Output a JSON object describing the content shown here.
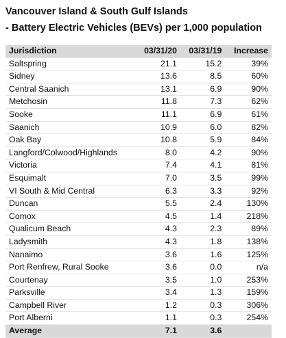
{
  "header": {
    "title_line1": "Vancouver Island & South Gulf Islands",
    "title_line2": "- Battery Electric Vehicles (BEVs) per 1,000 population"
  },
  "table": {
    "columns": [
      "Jurisdiction",
      "03/31/20",
      "03/31/19",
      "Increase"
    ],
    "rows": [
      [
        "Saltspring",
        "21.1",
        "15.2",
        "39%"
      ],
      [
        "Sidney",
        "13.6",
        "8.5",
        "60%"
      ],
      [
        "Central Saanich",
        "13.1",
        "6.9",
        "90%"
      ],
      [
        "Metchosin",
        "11.8",
        "7.3",
        "62%"
      ],
      [
        "Sooke",
        "11.1",
        "6.9",
        "61%"
      ],
      [
        "Saanich",
        "10.9",
        "6.0",
        "82%"
      ],
      [
        "Oak Bay",
        "10.8",
        "5.9",
        "84%"
      ],
      [
        "Langford/Colwood/Highlands",
        "8.0",
        "4.2",
        "90%"
      ],
      [
        "Victoria",
        "7.4",
        "4.1",
        "81%"
      ],
      [
        "Esquimalt",
        "7.0",
        "3.5",
        "99%"
      ],
      [
        "VI South & Mid Central",
        "6.3",
        "3.3",
        "92%"
      ],
      [
        "Duncan",
        "5.5",
        "2.4",
        "130%"
      ],
      [
        "Comox",
        "4.5",
        "1.4",
        "218%"
      ],
      [
        "Qualicum Beach",
        "4.3",
        "2.3",
        "89%"
      ],
      [
        "Ladysmith",
        "4.3",
        "1.8",
        "138%"
      ],
      [
        "Nanaimo",
        "3.6",
        "1.6",
        "125%"
      ],
      [
        "Port Renfrew, Rural Sooke",
        "3.6",
        "0.0",
        "n/a"
      ],
      [
        "Courtenay",
        "3.5",
        "1.0",
        "253%"
      ],
      [
        "Parksville",
        "3.4",
        "1.3",
        "159%"
      ],
      [
        "Campbell River",
        "1.2",
        "0.3",
        "306%"
      ],
      [
        "Port Alberni",
        "1.1",
        "0.3",
        "254%"
      ]
    ],
    "footer": [
      "Average",
      "7.1",
      "3.6"
    ]
  }
}
